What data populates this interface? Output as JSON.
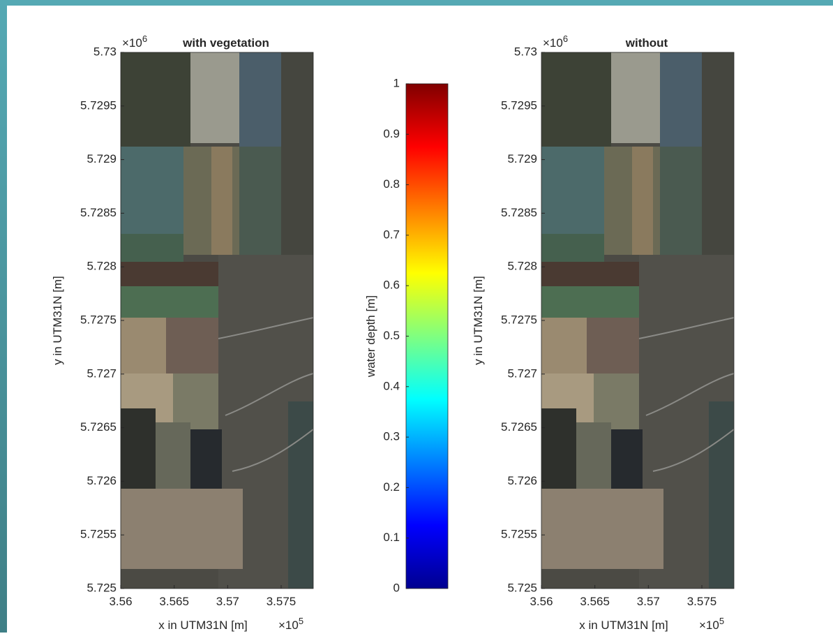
{
  "chart_data": [
    {
      "type": "map",
      "title": "with vegetation",
      "x_label": "x in UTM31N [m]",
      "y_label": "y in UTM31N [m]",
      "x_exponent": {
        "base": "×10",
        "power": "5"
      },
      "y_exponent": {
        "base": "×10",
        "power": "6"
      },
      "xlim": [
        3.56,
        3.578
      ],
      "xticks": [
        3.56,
        3.565,
        3.57,
        3.575
      ],
      "ylim": [
        5.725,
        5.73
      ],
      "yticks": [
        5.725,
        5.7255,
        5.726,
        5.7265,
        5.727,
        5.7275,
        5.728,
        5.7285,
        5.729,
        5.7295,
        5.73
      ]
    },
    {
      "type": "map",
      "title": "without",
      "x_label": "x in UTM31N [m]",
      "y_label": "y in UTM31N [m]",
      "x_exponent": {
        "base": "×10",
        "power": "5"
      },
      "y_exponent": {
        "base": "×10",
        "power": "6"
      },
      "xlim": [
        3.56,
        3.578
      ],
      "xticks": [
        3.56,
        3.565,
        3.57,
        3.575
      ],
      "ylim": [
        5.725,
        5.73
      ],
      "yticks": [
        5.725,
        5.7255,
        5.726,
        5.7265,
        5.727,
        5.7275,
        5.728,
        5.7285,
        5.729,
        5.7295,
        5.73
      ]
    },
    {
      "type": "colorbar",
      "label": "water depth [m]",
      "colormap": "jet",
      "ylim": [
        0,
        1
      ],
      "yticks": [
        0,
        0.1,
        0.2,
        0.3,
        0.4,
        0.5,
        0.6,
        0.7,
        0.8,
        0.9,
        1
      ]
    }
  ]
}
